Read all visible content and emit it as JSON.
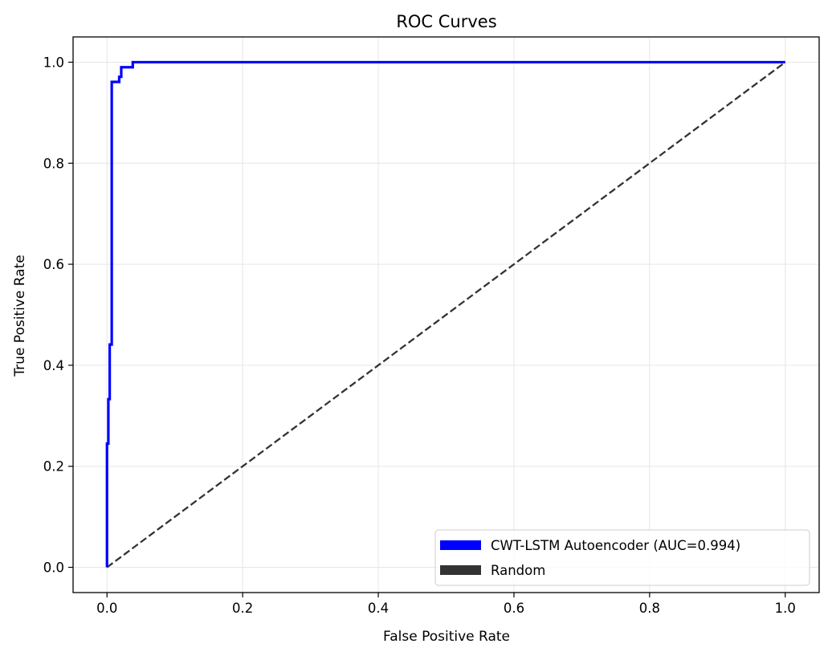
{
  "colors": {
    "model": "#0000ff",
    "random": "#333333",
    "grid": "#e6e6e6",
    "axes": "#000000",
    "legend_border": "#cccccc"
  },
  "chart_data": {
    "type": "line",
    "title": "ROC Curves",
    "xlabel": "False Positive Rate",
    "ylabel": "True Positive Rate",
    "xlim": [
      -0.05,
      1.05
    ],
    "ylim": [
      -0.05,
      1.05
    ],
    "grid": true,
    "legend_position": "lower right",
    "xticks": [
      0.0,
      0.2,
      0.4,
      0.6,
      0.8,
      1.0
    ],
    "yticks": [
      0.0,
      0.2,
      0.4,
      0.6,
      0.8,
      1.0
    ],
    "xtick_labels": [
      "0.0",
      "0.2",
      "0.4",
      "0.6",
      "0.8",
      "1.0"
    ],
    "ytick_labels": [
      "0.0",
      "0.2",
      "0.4",
      "0.6",
      "0.8",
      "1.0"
    ],
    "series": [
      {
        "name": "CWT-LSTM Autoencoder (AUC=0.994)",
        "style": "solid",
        "color": "#0000ff",
        "x": [
          0.0,
          0.0,
          0.002,
          0.002,
          0.004,
          0.004,
          0.007,
          0.007,
          0.009,
          0.009,
          0.018,
          0.018,
          0.021,
          0.021,
          0.038,
          0.038,
          1.0
        ],
        "y": [
          0.0,
          0.245,
          0.245,
          0.333,
          0.333,
          0.441,
          0.441,
          0.961,
          0.961,
          0.961,
          0.961,
          0.971,
          0.971,
          0.99,
          0.99,
          1.0,
          1.0
        ]
      },
      {
        "name": "Random",
        "style": "dashed",
        "color": "#333333",
        "x": [
          0.0,
          1.0
        ],
        "y": [
          0.0,
          1.0
        ]
      }
    ]
  }
}
